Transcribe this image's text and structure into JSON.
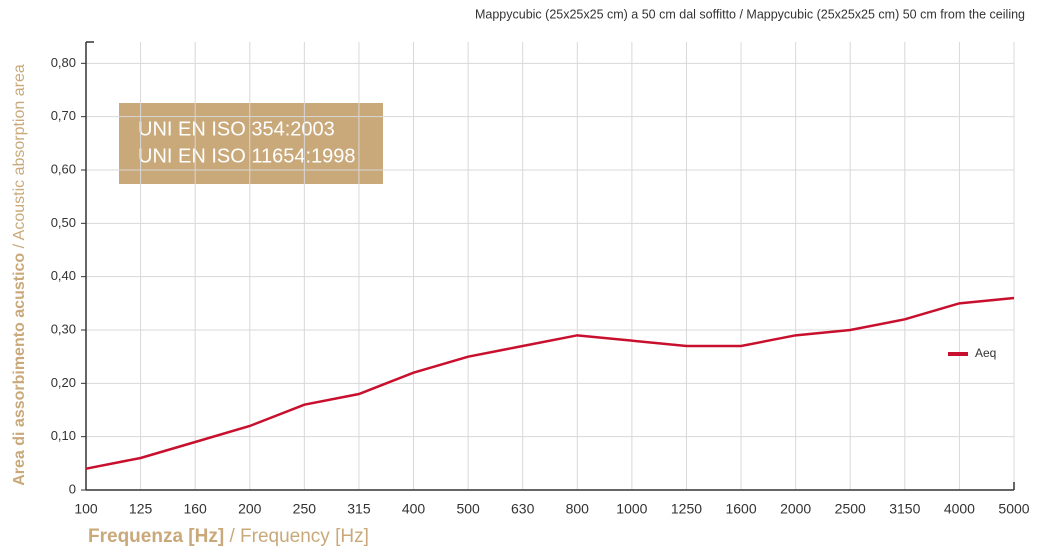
{
  "chart_data": {
    "type": "line",
    "title": "Mappycubic (25x25x25 cm) a 50 cm dal soffitto / Mappycubic (25x25x25 cm) 50 cm from the ceiling",
    "annotation": [
      "UNI EN ISO 354:2003",
      "UNI EN ISO 11654:1998"
    ],
    "x_label": [
      "Frequenza [Hz]",
      " / Frequency [Hz]"
    ],
    "y_label": [
      "Area di assorbimento acustico",
      " / Acoustic absorption area"
    ],
    "categories": [
      "100",
      "125",
      "160",
      "200",
      "250",
      "315",
      "400",
      "500",
      "630",
      "800",
      "1000",
      "1250",
      "1600",
      "2000",
      "2500",
      "3150",
      "4000",
      "5000"
    ],
    "series": [
      {
        "name": "Aeq",
        "color": "#c8102e",
        "values": [
          0.04,
          0.06,
          0.09,
          0.12,
          0.16,
          0.18,
          0.22,
          0.25,
          0.27,
          0.29,
          0.28,
          0.27,
          0.27,
          0.29,
          0.3,
          0.32,
          0.35,
          0.36
        ]
      }
    ],
    "ylim": [
      0,
      0.84
    ],
    "yticks": [
      0,
      {
        "value": 0.1,
        "label": "0,10"
      },
      {
        "value": 0.2,
        "label": "0,20"
      },
      {
        "value": 0.3,
        "label": "0,30"
      },
      {
        "value": 0.4,
        "label": "0,40"
      },
      {
        "value": 0.5,
        "label": "0,50"
      },
      {
        "value": 0.6,
        "label": "0,60"
      },
      {
        "value": 0.7,
        "label": "0,70"
      },
      {
        "value": 0.8,
        "label": "0,80"
      }
    ],
    "grid": true,
    "legend": "right"
  }
}
